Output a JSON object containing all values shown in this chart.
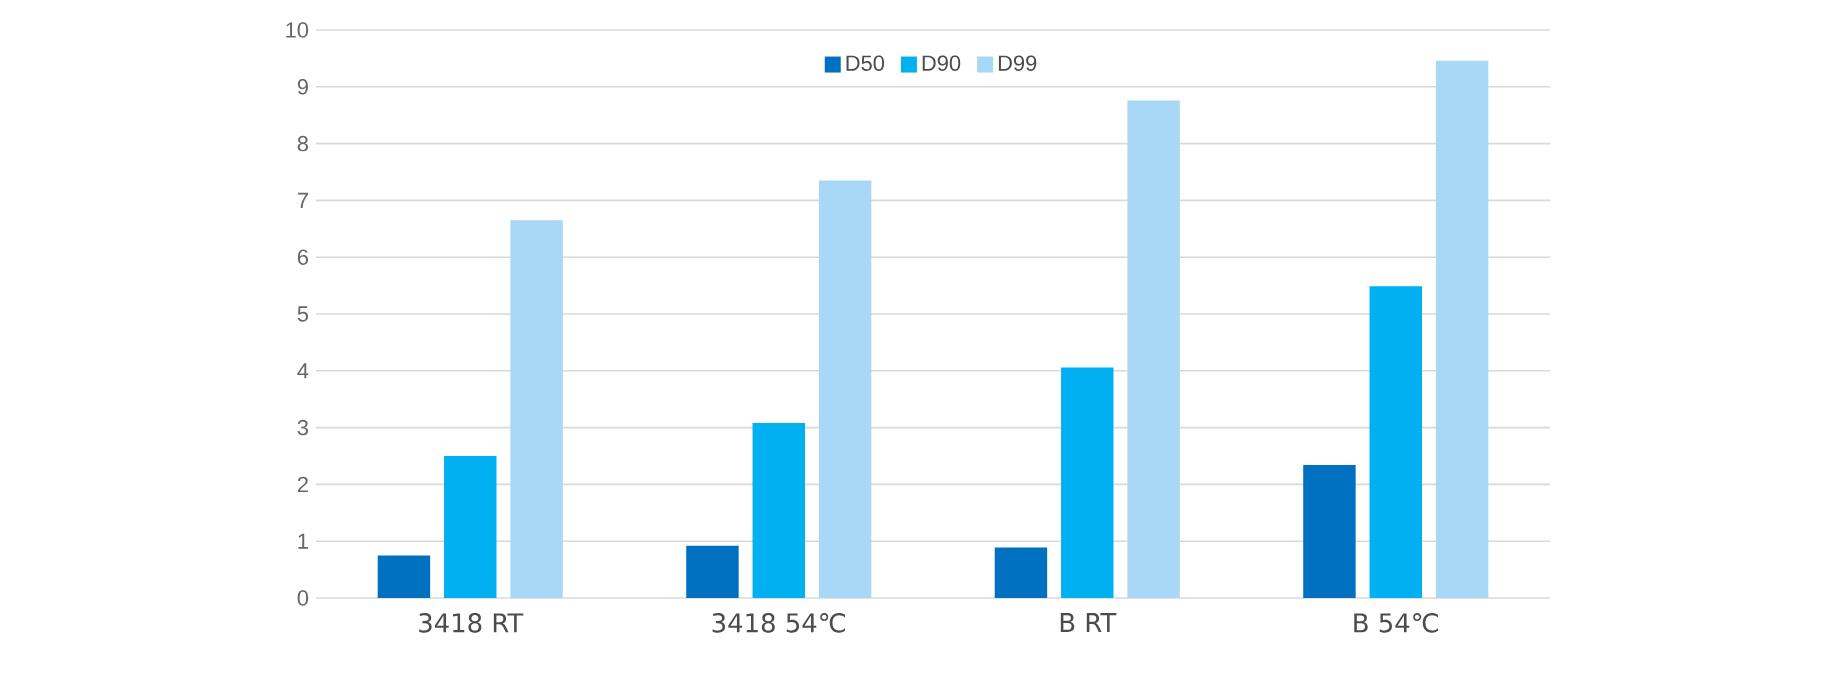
{
  "chart_data": {
    "type": "bar",
    "categories": [
      "3418 RT",
      "3418 54℃",
      "B RT",
      "B 54℃"
    ],
    "series": [
      {
        "name": "D50",
        "color": "#0070c0",
        "values": [
          0.75,
          0.92,
          0.89,
          2.34
        ]
      },
      {
        "name": "D90",
        "color": "#00b0f0",
        "values": [
          2.5,
          3.08,
          4.06,
          5.49
        ]
      },
      {
        "name": "D99",
        "color": "#a9d8f7",
        "values": [
          6.65,
          7.35,
          8.76,
          9.46
        ]
      }
    ],
    "ylim": [
      0,
      10
    ],
    "yticks": [
      0,
      1,
      2,
      3,
      4,
      5,
      6,
      7,
      8,
      9,
      10
    ],
    "grid": "y",
    "legend": "top"
  }
}
